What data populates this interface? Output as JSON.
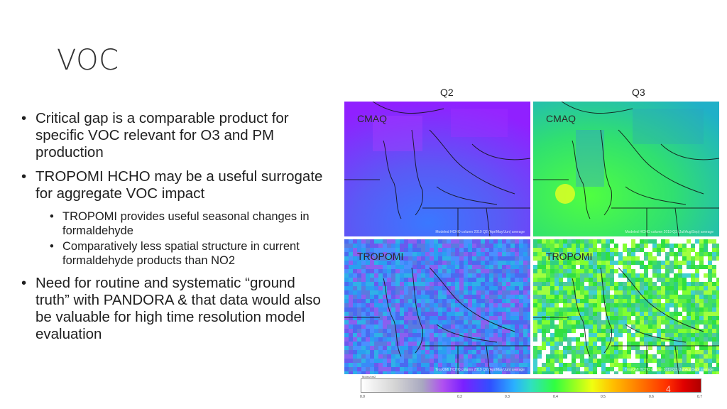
{
  "slide": {
    "title": "VOC",
    "page_number": "4"
  },
  "bullets": {
    "b1": "Critical gap is a comparable product for specific VOC relevant for O3 and PM production",
    "b2": "TROPOMI HCHO may be a useful surrogate for aggregate VOC impact",
    "b2_sub1": "TROPOMI provides useful seasonal changes in formaldehyde",
    "b2_sub2": "Comparatively less spatial structure in current formaldehyde products than NO2",
    "b3": "Need for routine and systematic “ground truth” with PANDORA & that data would also be valuable for high time resolution model evaluation"
  },
  "figure": {
    "columns": [
      "Q2",
      "Q3"
    ],
    "panels": {
      "cmaq_q2": {
        "label": "CMAQ",
        "footer": "Modeled HCHO column 2019 Q2 (Apr/May/Jun) average"
      },
      "cmaq_q3": {
        "label": "CMAQ",
        "footer": "Modeled HCHO column 2019 Q3 (Jul/Aug/Sep) average"
      },
      "tropomi_q2": {
        "label": "TROPOMI",
        "footer": "TropOMI HCHO column 2019 Q2 (Apr/May/Jun) average"
      },
      "tropomi_q3": {
        "label": "TROPOMI",
        "footer": "TropOMI HCHO column 2019 Q3 (Jul/Aug/Sep) average"
      }
    },
    "colorbar": {
      "title": "Molec/cm2",
      "ticks": [
        "0.0",
        "0.2",
        "0.3",
        "0.4",
        "0.5",
        "0.6",
        "0.7"
      ]
    }
  }
}
